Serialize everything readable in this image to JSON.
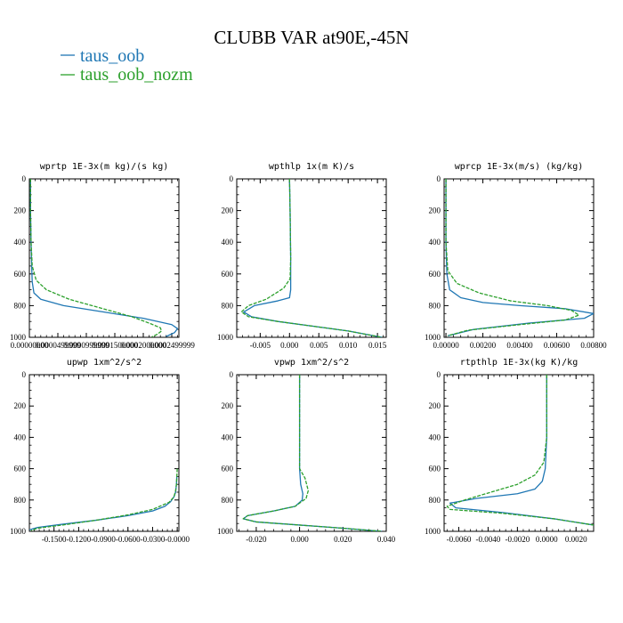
{
  "figure": {
    "title": "CLUBB VAR at90E,-45N",
    "legend": [
      {
        "name": "taus_oob",
        "color": "#1f77b4"
      },
      {
        "name": "taus_oob_nozm",
        "color": "#2ca02c"
      }
    ]
  },
  "chart_data": [
    {
      "type": "line",
      "title": "wprtp  1E-3x(m kg)/(s kg)",
      "xlim": [
        0,
        0.0002625
      ],
      "ylim": [
        1000,
        0
      ],
      "xticks": [
        0,
        5e-05,
        0.0001,
        0.00015,
        0.0002,
        0.00025
      ],
      "xtick_labels": [
        "0.00000000",
        "0.0000499999",
        "0.0000999999",
        "0.0001500000",
        "0.0002000000",
        "0.0002499999"
      ],
      "yticks": [
        0,
        200,
        400,
        600,
        800,
        1000
      ],
      "series": [
        {
          "name": "taus_oob",
          "color": "#1f77b4",
          "dashed": false,
          "x": [
            2e-06,
            2e-06,
            3e-06,
            4e-06,
            5e-06,
            8e-06,
            2e-05,
            6e-05,
            0.00013,
            0.0002,
            0.00025,
            0.00026,
            0.000255,
            0.00024
          ],
          "y": [
            0,
            200,
            400,
            550,
            650,
            720,
            760,
            800,
            840,
            880,
            920,
            945,
            970,
            995
          ]
        },
        {
          "name": "taus_oob_nozm",
          "color": "#2ca02c",
          "dashed": true,
          "x": [
            2e-06,
            2e-06,
            3e-06,
            5e-06,
            1.2e-05,
            3e-05,
            7e-05,
            0.00013,
            0.00018,
            0.00021,
            0.00023,
            0.000232,
            0.000225,
            0.000215
          ],
          "y": [
            0,
            200,
            400,
            550,
            640,
            700,
            760,
            820,
            870,
            910,
            940,
            960,
            980,
            998
          ]
        }
      ]
    },
    {
      "type": "line",
      "title": "wpthlp  1x(m K)/s",
      "xlim": [
        -0.009,
        0.0165
      ],
      "ylim": [
        1000,
        0
      ],
      "xticks": [
        -0.005,
        0,
        0.005,
        0.01,
        0.015
      ],
      "xtick_labels": [
        "-0.005",
        "0.000",
        "0.005",
        "0.010",
        "0.015"
      ],
      "yticks": [
        0,
        200,
        400,
        600,
        800,
        1000
      ],
      "series": [
        {
          "name": "taus_oob",
          "color": "#1f77b4",
          "dashed": false,
          "x": [
            0,
            0.0001,
            0.0002,
            0.0002,
            0,
            -0.002,
            -0.006,
            -0.0078,
            -0.0065,
            -0.002,
            0.004,
            0.01,
            0.0158
          ],
          "y": [
            0,
            200,
            500,
            700,
            750,
            770,
            800,
            840,
            870,
            900,
            930,
            960,
            1000
          ]
        },
        {
          "name": "taus_oob_nozm",
          "color": "#2ca02c",
          "dashed": true,
          "x": [
            0,
            0.0001,
            0.0002,
            0.0001,
            -0.001,
            -0.004,
            -0.007,
            -0.0082,
            -0.007,
            -0.002,
            0.004,
            0.01,
            0.0158
          ],
          "y": [
            0,
            200,
            500,
            630,
            690,
            760,
            800,
            840,
            870,
            900,
            930,
            960,
            1000
          ]
        }
      ]
    },
    {
      "type": "line",
      "title": "wprcp  1E-3x(m/s) (kg/kg)",
      "xlim": [
        -0.0001,
        0.008
      ],
      "ylim": [
        1000,
        0
      ],
      "xticks": [
        0,
        0.002,
        0.004,
        0.006,
        0.008
      ],
      "xtick_labels": [
        "0.00000",
        "0.00200",
        "0.00400",
        "0.00600",
        "0.00800"
      ],
      "yticks": [
        0,
        200,
        400,
        600,
        800,
        1000
      ],
      "series": [
        {
          "name": "taus_oob",
          "color": "#1f77b4",
          "dashed": false,
          "x": [
            0,
            0,
            0,
            5e-05,
            0.0002,
            0.0008,
            0.002,
            0.004,
            0.0065,
            0.008,
            0.0075,
            0.0045,
            0.0015,
            0.0001
          ],
          "y": [
            0,
            200,
            400,
            600,
            700,
            750,
            780,
            800,
            820,
            850,
            880,
            910,
            950,
            990
          ]
        },
        {
          "name": "taus_oob_nozm",
          "color": "#2ca02c",
          "dashed": true,
          "x": [
            0,
            0,
            0,
            0.0001,
            0.0006,
            0.0018,
            0.0035,
            0.0055,
            0.0068,
            0.0072,
            0.0065,
            0.004,
            0.0012,
            0.0001
          ],
          "y": [
            0,
            200,
            400,
            580,
            660,
            720,
            770,
            800,
            830,
            860,
            890,
            920,
            955,
            990
          ]
        }
      ]
    },
    {
      "type": "line",
      "title": "upwp  1xm^2/s^2",
      "xlim": [
        -0.18,
        0.002
      ],
      "ylim": [
        1000,
        0
      ],
      "xticks": [
        -0.15,
        -0.12,
        -0.09,
        -0.06,
        -0.03,
        0
      ],
      "xtick_labels": [
        "-0.1500",
        "-0.1200",
        "-0.0900",
        "-0.0600",
        "-0.0300",
        "-0.0000"
      ],
      "yticks": [
        0,
        200,
        400,
        600,
        800,
        1000
      ],
      "series": [
        {
          "name": "taus_oob",
          "color": "#1f77b4",
          "dashed": false,
          "x": [
            -0.0005,
            -0.001,
            -0.002,
            -0.004,
            -0.008,
            -0.015,
            -0.03,
            -0.06,
            -0.1,
            -0.14,
            -0.17,
            -0.18
          ],
          "y": [
            650,
            700,
            750,
            780,
            810,
            840,
            870,
            900,
            930,
            955,
            975,
            990
          ]
        },
        {
          "name": "taus_oob_nozm",
          "color": "#2ca02c",
          "dashed": true,
          "x": [
            0,
            -0.0005,
            -0.001,
            -0.002,
            -0.004,
            -0.01,
            -0.03,
            -0.06,
            -0.1,
            -0.14,
            -0.17,
            -0.178
          ],
          "y": [
            600,
            650,
            700,
            740,
            780,
            815,
            860,
            895,
            930,
            960,
            980,
            995
          ]
        }
      ]
    },
    {
      "type": "line",
      "title": "vpwp  1xm^2/s^2",
      "xlim": [
        -0.029,
        0.04
      ],
      "ylim": [
        1000,
        0
      ],
      "xticks": [
        -0.02,
        0,
        0.02,
        0.04
      ],
      "xtick_labels": [
        "-0.020",
        "0.000",
        "0.020",
        "0.040"
      ],
      "yticks": [
        0,
        200,
        400,
        600,
        800,
        1000
      ],
      "series": [
        {
          "name": "taus_oob",
          "color": "#1f77b4",
          "dashed": false,
          "x": [
            0,
            0,
            0,
            0.0005,
            0.0015,
            0.0012,
            -0.002,
            -0.012,
            -0.024,
            -0.026,
            -0.02,
            0.0,
            0.02,
            0.038
          ],
          "y": [
            0,
            300,
            600,
            700,
            760,
            800,
            840,
            870,
            900,
            920,
            940,
            960,
            980,
            1000
          ]
        },
        {
          "name": "taus_oob_nozm",
          "color": "#2ca02c",
          "dashed": true,
          "x": [
            0,
            0,
            0,
            0.0025,
            0.004,
            0.003,
            -0.002,
            -0.012,
            -0.024,
            -0.026,
            -0.02,
            0.0,
            0.02,
            0.038
          ],
          "y": [
            0,
            300,
            600,
            660,
            740,
            790,
            840,
            870,
            900,
            920,
            940,
            960,
            980,
            1000
          ]
        }
      ]
    },
    {
      "type": "line",
      "title": "rtpthlp  1E-3x(kg K)/kg",
      "xlim": [
        -0.007,
        0.0032
      ],
      "ylim": [
        1000,
        0
      ],
      "xticks": [
        -0.006,
        -0.004,
        -0.002,
        0,
        0.002
      ],
      "xtick_labels": [
        "-0.0060",
        "-0.0040",
        "-0.0020",
        "0.0000",
        "0.0020"
      ],
      "yticks": [
        0,
        200,
        400,
        600,
        800,
        1000
      ],
      "series": [
        {
          "name": "taus_oob",
          "color": "#1f77b4",
          "dashed": false,
          "x": [
            0,
            0,
            -0.0001,
            -0.0003,
            -0.0008,
            -0.002,
            -0.0048,
            -0.0066,
            -0.0062,
            -0.003,
            0.0005,
            0.0032
          ],
          "y": [
            0,
            400,
            600,
            680,
            730,
            760,
            790,
            820,
            850,
            880,
            920,
            960
          ]
        },
        {
          "name": "taus_oob_nozm",
          "color": "#2ca02c",
          "dashed": true,
          "x": [
            0,
            0,
            -0.0002,
            -0.0008,
            -0.002,
            -0.0038,
            -0.0056,
            -0.0068,
            -0.0066,
            -0.003,
            0.0005,
            0.0032
          ],
          "y": [
            0,
            400,
            560,
            640,
            700,
            750,
            800,
            840,
            860,
            885,
            920,
            960
          ]
        }
      ]
    }
  ]
}
